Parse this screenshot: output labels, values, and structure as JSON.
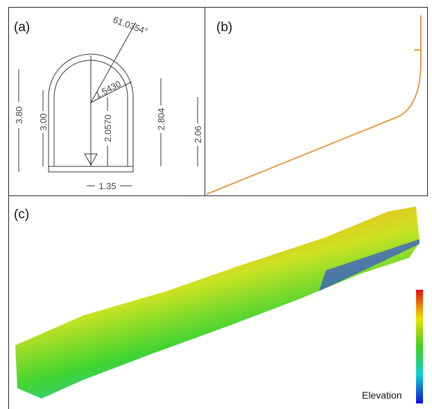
{
  "panels": {
    "a": {
      "label": "(a)",
      "angle": "61.0354°",
      "radius": "1.5430",
      "height_total": "3.80",
      "wall_height": "3.00",
      "center_height": "2.0570",
      "height_right": "2.804",
      "height_outer": "2.06",
      "width": "1.35"
    },
    "b": {
      "label": "(b)"
    },
    "c": {
      "label": "(c)",
      "colorbar_label": "Elevation"
    }
  }
}
